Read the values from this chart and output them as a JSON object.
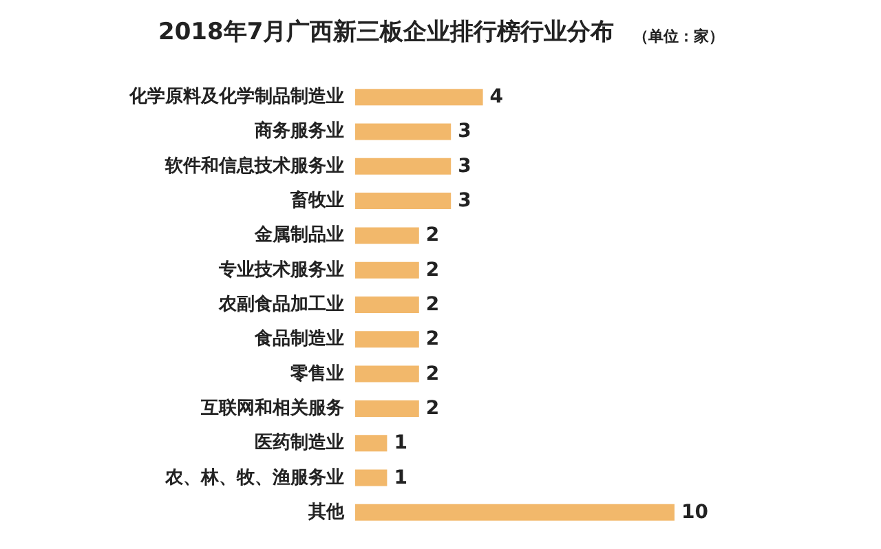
{
  "chart_data": {
    "type": "bar",
    "orientation": "horizontal",
    "title": "2018年7月广西新三板企业排行榜行业分布",
    "subtitle": "（单位：家）",
    "categories": [
      "化学原料及化学制品制造业",
      "商务服务业",
      "软件和信息技术服务业",
      "畜牧业",
      "金属制品业",
      "专业技术服务业",
      "农副食品加工业",
      "食品制造业",
      "零售业",
      "互联网和相关服务",
      "医药制造业",
      "农、林、牧、渔服务业",
      "其他"
    ],
    "values": [
      4,
      3,
      3,
      3,
      2,
      2,
      2,
      2,
      2,
      2,
      1,
      1,
      10
    ],
    "color": "#f2b86b",
    "data_labels": true
  }
}
